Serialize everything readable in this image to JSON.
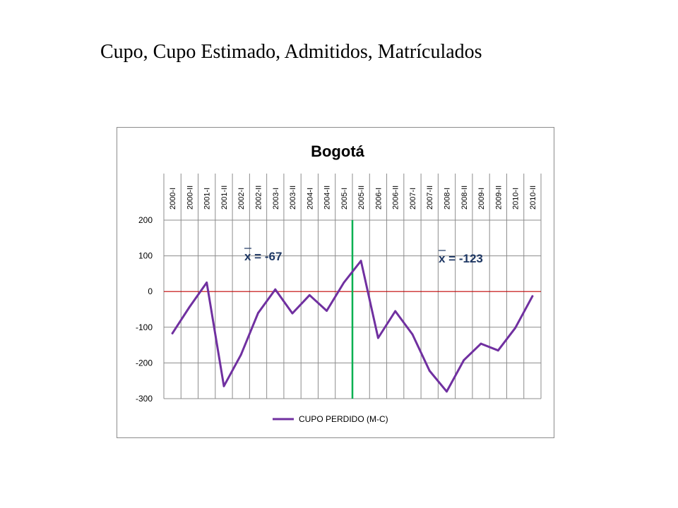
{
  "page": {
    "title": "Cupo, Cupo Estimado,  Admitidos, Matrículados"
  },
  "chart_data": {
    "type": "line",
    "title": "Bogotá",
    "categories": [
      "2000-I",
      "2000-II",
      "2001-I",
      "2001-II",
      "2002-I",
      "2002-II",
      "2003-I",
      "2003-II",
      "2004-I",
      "2004-II",
      "2005-I",
      "2005-II",
      "2006-I",
      "2006-II",
      "2007-I",
      "2007-II",
      "2008-I",
      "2008-II",
      "2009-I",
      "2009-II",
      "2010-I",
      "2010-II"
    ],
    "series": [
      {
        "name": "CUPO PERDIDO  (M-C)",
        "color": "#7030a0",
        "values": [
          -117,
          -43,
          25,
          -265,
          -177,
          -60,
          6,
          -61,
          -10,
          -54,
          25,
          86,
          -130,
          -55,
          -120,
          -222,
          -280,
          -192,
          -146,
          -165,
          -102,
          -13
        ]
      }
    ],
    "ylim": [
      -300,
      200
    ],
    "yticks": [
      200,
      100,
      0,
      -100,
      -200,
      -300
    ],
    "grid": true,
    "zero_line_color": "#c00000",
    "divider_after_category": "2005-I",
    "divider_color": "#00b050",
    "annotations": [
      {
        "text": "x = -67",
        "color": "#1f3864"
      },
      {
        "text": "x = -123",
        "color": "#1f3864"
      }
    ],
    "legend": "bottom"
  }
}
